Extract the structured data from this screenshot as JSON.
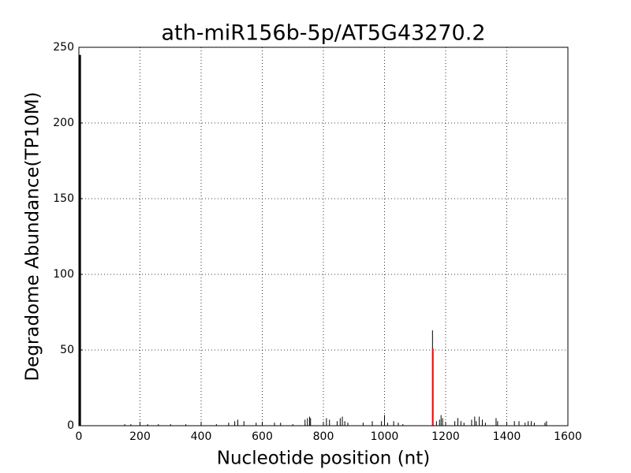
{
  "chart_data": {
    "type": "vlines",
    "title": "ath-miR156b-5p/AT5G43270.2",
    "xlabel": "Nucleotide position (nt)",
    "ylabel": "Degradome Abundance(TP10M)",
    "xlim": [
      0,
      1600
    ],
    "ylim": [
      0,
      250
    ],
    "xticks": [
      0,
      200,
      400,
      600,
      800,
      1000,
      1200,
      1400,
      1600
    ],
    "yticks": [
      0,
      50,
      100,
      150,
      200,
      250
    ],
    "grid": true,
    "series": [
      {
        "color": "#000000",
        "x": [
          3,
          5,
          150,
          170,
          200,
          225,
          260,
          300,
          350,
          400,
          450,
          490,
          510,
          520,
          540,
          580,
          640,
          660,
          700,
          740,
          748,
          755,
          758,
          800,
          810,
          820,
          845,
          855,
          862,
          870,
          880,
          930,
          960,
          990,
          1000,
          1010,
          1030,
          1045,
          1060,
          1157,
          1170,
          1180,
          1185,
          1190,
          1200,
          1230,
          1240,
          1250,
          1260,
          1285,
          1295,
          1300,
          1310,
          1320,
          1330,
          1365,
          1370,
          1400,
          1425,
          1440,
          1460,
          1470,
          1480,
          1490,
          1525,
          1530
        ],
        "values": [
          245,
          15,
          1,
          1,
          1,
          1,
          1,
          1,
          1,
          1,
          1,
          2,
          3,
          4,
          3,
          2,
          2,
          2,
          1,
          4,
          5,
          6,
          5,
          2,
          5,
          4,
          3,
          5,
          6,
          3,
          2,
          2,
          3,
          3,
          7,
          2,
          3,
          2,
          1,
          63,
          3,
          4,
          7,
          5,
          2,
          3,
          5,
          3,
          2,
          4,
          6,
          3,
          6,
          4,
          2,
          5,
          3,
          1,
          3,
          3,
          2,
          3,
          3,
          2,
          2,
          3
        ]
      },
      {
        "color": "#ff0000",
        "x": [
          1158
        ],
        "values": [
          51
        ]
      }
    ]
  }
}
